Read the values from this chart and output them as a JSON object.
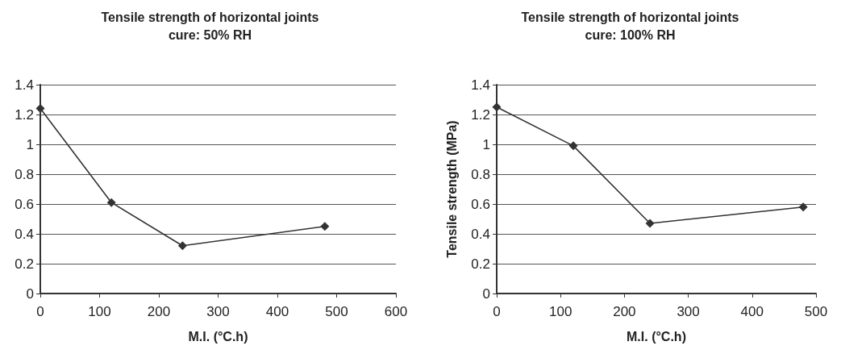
{
  "chart_data": [
    {
      "type": "line",
      "title": "Tensile strength of horizontal joints",
      "subtitle": "cure: 50% RH",
      "xlabel": "M.I. (°C.h)",
      "x": [
        0,
        120,
        240,
        480
      ],
      "series": [
        {
          "color": "#333333",
          "values": [
            1.24,
            0.61,
            0.32,
            0.45
          ]
        }
      ],
      "xlim": [
        0,
        600
      ],
      "xticks": [
        0,
        100,
        200,
        300,
        400,
        500,
        600
      ],
      "ylim": [
        0,
        1.4
      ],
      "yticks": [
        0,
        0.2,
        0.4,
        0.6,
        0.8,
        1,
        1.2,
        1.4
      ],
      "grid": "y",
      "marker": "diamond"
    },
    {
      "type": "line",
      "title": "Tensile strength of horizontal joints",
      "subtitle": "cure: 100% RH",
      "xlabel": "M.I. (°C.h)",
      "ylabel": "Tensile strength (MPa)",
      "x": [
        0,
        120,
        240,
        480
      ],
      "series": [
        {
          "color": "#333333",
          "values": [
            1.25,
            0.99,
            0.47,
            0.58
          ]
        }
      ],
      "xlim": [
        0,
        500
      ],
      "xticks": [
        0,
        100,
        200,
        300,
        400,
        500
      ],
      "ylim": [
        0,
        1.4
      ],
      "yticks": [
        0,
        0.2,
        0.4,
        0.6,
        0.8,
        1,
        1.2,
        1.4
      ],
      "grid": "y",
      "marker": "diamond"
    }
  ]
}
